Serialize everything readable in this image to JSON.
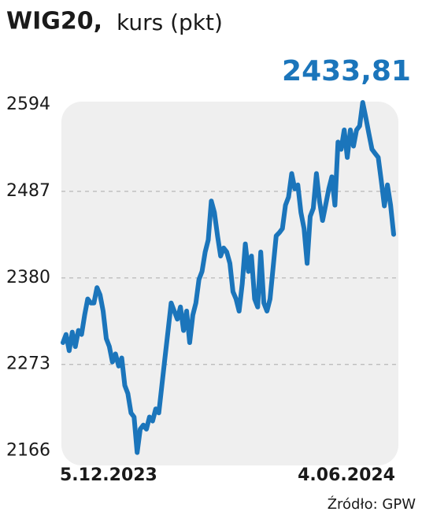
{
  "chart_data": {
    "type": "line",
    "title": "WIG20,",
    "subtitle": "kurs (pkt)",
    "source": "Źródło: GPW",
    "categories": [
      "5.12.2023",
      null,
      null,
      null,
      null,
      null,
      null,
      null,
      null,
      null,
      null,
      null,
      null,
      null,
      null,
      null,
      null,
      null,
      null,
      null,
      null,
      null,
      null,
      null,
      null,
      null,
      null,
      null,
      null,
      null,
      null,
      null,
      null,
      null,
      null,
      null,
      null,
      null,
      null,
      null,
      null,
      null,
      null,
      null,
      null,
      null,
      null,
      null,
      null,
      null,
      null,
      null,
      null,
      null,
      null,
      null,
      null,
      null,
      null,
      null,
      null,
      null,
      null,
      null,
      null,
      null,
      null,
      null,
      null,
      null,
      null,
      null,
      null,
      null,
      null,
      null,
      null,
      null,
      null,
      null,
      null,
      null,
      null,
      null,
      null,
      null,
      null,
      null,
      null,
      null,
      null,
      null,
      null,
      null,
      null,
      null,
      null,
      null,
      null,
      null,
      null,
      null,
      null,
      null,
      null,
      null,
      null,
      "4.06.2024"
    ],
    "series": [
      {
        "name": "WIG20",
        "color": "#1b75bb",
        "values": [
          2300,
          2310,
          2290,
          2313,
          2295,
          2315,
          2310,
          2334,
          2354,
          2349,
          2349,
          2368,
          2359,
          2339,
          2305,
          2295,
          2276,
          2286,
          2271,
          2281,
          2247,
          2237,
          2213,
          2208,
          2164,
          2193,
          2198,
          2193,
          2208,
          2203,
          2218,
          2213,
          2247,
          2281,
          2315,
          2349,
          2339,
          2329,
          2344,
          2315,
          2339,
          2300,
          2334,
          2349,
          2378,
          2388,
          2412,
          2427,
          2475,
          2461,
          2432,
          2407,
          2417,
          2412,
          2398,
          2363,
          2354,
          2339,
          2373,
          2422,
          2388,
          2407,
          2354,
          2344,
          2412,
          2349,
          2339,
          2354,
          2393,
          2432,
          2436,
          2441,
          2470,
          2480,
          2509,
          2490,
          2495,
          2461,
          2441,
          2398,
          2456,
          2466,
          2509,
          2475,
          2451,
          2470,
          2490,
          2505,
          2470,
          2548,
          2539,
          2563,
          2529,
          2563,
          2543,
          2563,
          2568,
          2597,
          2578,
          2558,
          2539,
          2534,
          2529,
          2500,
          2469,
          2495,
          2470,
          2433.81
        ],
        "value_labels": [
          null,
          null,
          null,
          null,
          null,
          null,
          null,
          null,
          null,
          null,
          null,
          null,
          null,
          null,
          null,
          null,
          null,
          null,
          null,
          null,
          null,
          null,
          null,
          null,
          null,
          null,
          null,
          null,
          null,
          null,
          null,
          null,
          null,
          null,
          null,
          null,
          null,
          null,
          null,
          null,
          null,
          null,
          null,
          null,
          null,
          null,
          null,
          null,
          null,
          null,
          null,
          null,
          null,
          null,
          null,
          null,
          null,
          null,
          null,
          null,
          null,
          null,
          null,
          null,
          null,
          null,
          null,
          null,
          null,
          null,
          null,
          null,
          null,
          null,
          null,
          null,
          null,
          null,
          null,
          null,
          null,
          null,
          null,
          null,
          null,
          null,
          null,
          null,
          null,
          null,
          null,
          null,
          null,
          null,
          null,
          null,
          null,
          null,
          null,
          null,
          null,
          null,
          null,
          null,
          null,
          null,
          null,
          "2433,81"
        ]
      }
    ],
    "ylim": [
      2150,
      2600
    ],
    "yticks": [
      2166,
      2273,
      2380,
      2487,
      2594
    ],
    "grid": true
  }
}
